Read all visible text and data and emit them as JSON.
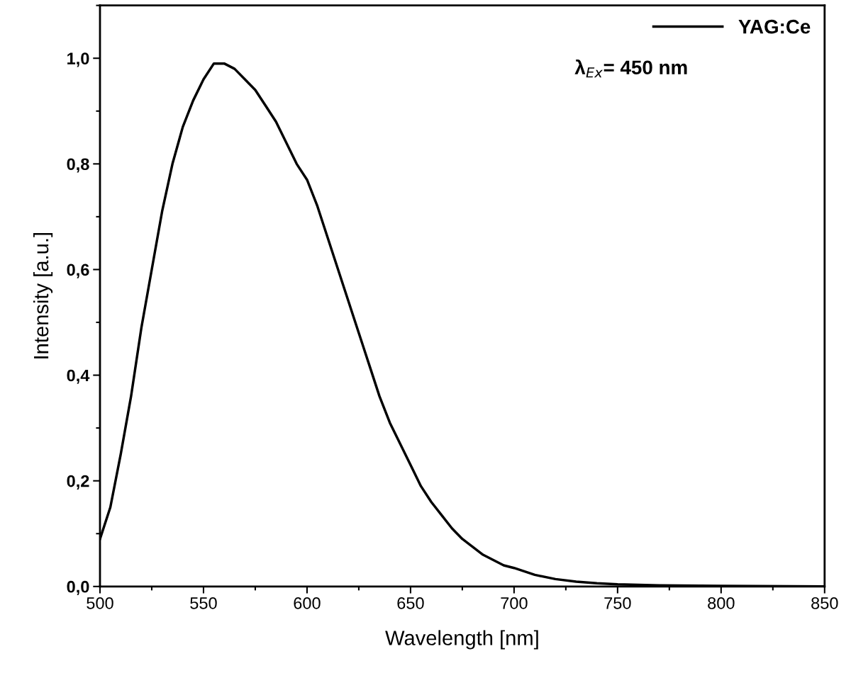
{
  "chart_data": {
    "type": "line",
    "xlabel": "Wavelength [nm]",
    "ylabel": "Intensity [a.u.]",
    "x": [
      500,
      505,
      510,
      515,
      520,
      525,
      530,
      535,
      540,
      545,
      550,
      555,
      560,
      565,
      570,
      575,
      580,
      585,
      590,
      595,
      600,
      605,
      610,
      615,
      620,
      625,
      630,
      635,
      640,
      645,
      650,
      655,
      660,
      665,
      670,
      675,
      680,
      685,
      690,
      695,
      700,
      710,
      720,
      730,
      740,
      750,
      770,
      800,
      850
    ],
    "series": [
      {
        "name": "YAG:Ce",
        "color": "#000000",
        "values": [
          0.09,
          0.15,
          0.25,
          0.36,
          0.49,
          0.6,
          0.71,
          0.8,
          0.87,
          0.92,
          0.96,
          0.99,
          0.99,
          0.98,
          0.96,
          0.94,
          0.91,
          0.88,
          0.84,
          0.8,
          0.77,
          0.72,
          0.66,
          0.6,
          0.54,
          0.48,
          0.42,
          0.36,
          0.31,
          0.27,
          0.23,
          0.19,
          0.16,
          0.135,
          0.11,
          0.09,
          0.075,
          0.06,
          0.05,
          0.04,
          0.035,
          0.022,
          0.014,
          0.009,
          0.006,
          0.004,
          0.002,
          0.001,
          0.0
        ]
      }
    ],
    "xlim": [
      500,
      850
    ],
    "xticks": [
      500,
      550,
      600,
      650,
      700,
      750,
      800,
      850
    ],
    "ylim": [
      0,
      1.1
    ],
    "yticks": [
      {
        "value": 0,
        "label": "0,0"
      },
      {
        "value": 0.2,
        "label": "0,2"
      },
      {
        "value": 0.4,
        "label": "0,4"
      },
      {
        "value": 0.6,
        "label": "0,6"
      },
      {
        "value": 0.8,
        "label": "0,8"
      },
      {
        "value": 1.0,
        "label": "1,0"
      }
    ],
    "legend": "top right",
    "grid": false,
    "marker": "none",
    "line_style": "solid",
    "annotations": [
      "λ$_{Ex}$= 450 nm"
    ]
  }
}
